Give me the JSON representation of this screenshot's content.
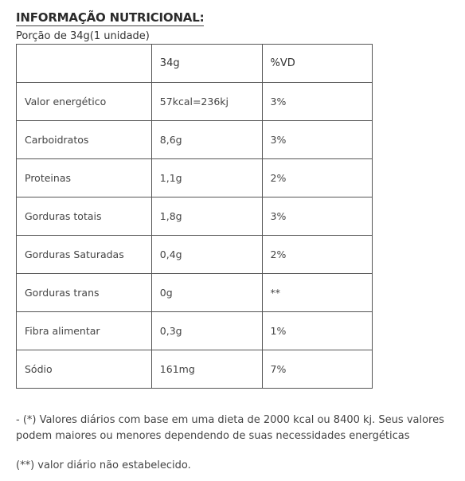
{
  "title": "INFORMAÇÃO NUTRICIONAL:",
  "serving": "Porção de 34g(1 unidade)",
  "table": {
    "header": [
      "",
      "34g",
      "%VD"
    ],
    "rows": [
      {
        "name": "Valor energético",
        "amount": "57kcal=236kj",
        "vd": "3%"
      },
      {
        "name": "Carboidratos",
        "amount": "8,6g",
        "vd": "3%"
      },
      {
        "name": "Proteinas",
        "amount": "1,1g",
        "vd": "2%"
      },
      {
        "name": "Gorduras totais",
        "amount": "1,8g",
        "vd": "3%"
      },
      {
        "name": "Gorduras Saturadas",
        "amount": "0,4g",
        "vd": "2%"
      },
      {
        "name": "Gorduras trans",
        "amount": "0g",
        "vd": "**"
      },
      {
        "name": "Fibra alimentar",
        "amount": "0,3g",
        "vd": "1%"
      },
      {
        "name": "Sódio",
        "amount": "161mg",
        "vd": "7%"
      }
    ]
  },
  "footnotes": {
    "daily_values": "- (*) Valores diários com base em uma dieta de 2000 kcal ou 8400 kj. Seus valores podem maiores ou menores dependendo de suas necessidades energéticas",
    "not_established": "(**) valor diário não estabelecido."
  }
}
